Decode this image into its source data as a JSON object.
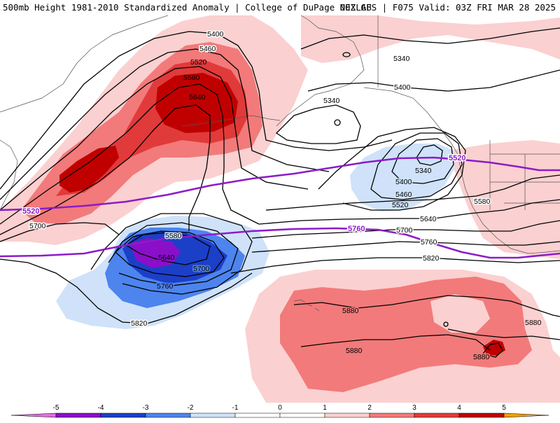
{
  "header": {
    "title_left": "500mb Height 1981-2010 Standardized Anomaly | College of DuPage NEXLAB",
    "title_right": "00Z GFS | F075 Valid: 03Z FRI MAR 28 2025"
  },
  "colors": {
    "pos1": "#fbd0d0",
    "pos2": "#f27a7a",
    "pos3": "#e13a3a",
    "pos4": "#c00000",
    "pos5": "#f0a000",
    "neg1": "#cfe2fa",
    "neg2": "#4d84ee",
    "neg3": "#1c3fc8",
    "neg4": "#8a0fc8",
    "neg5": "#e070e0",
    "contour": "#000000",
    "special_contour": "#8c1cc8",
    "coast": "#555555"
  },
  "contour_labels": {
    "c5400_top": "5400",
    "c5460_top": "5460",
    "c5520_top": "5520",
    "c5580_top": "5580",
    "c5640_top": "5640",
    "c5340_ne": "5340",
    "c5400_ne": "5400",
    "c5340_ak": "5340",
    "c5340_low": "5340",
    "c5400_low": "5400",
    "c5460_low": "5460",
    "c5520_low": "5520",
    "c5580_right": "5580",
    "c5640_right": "5640",
    "c5700_right": "5700",
    "c5760_right": "5760",
    "c5820_right": "5820",
    "c5700_left": "5700",
    "c5580_mid": "5580",
    "c5640_mid": "5640",
    "c5700_mid": "5700",
    "c5760_mid": "5760",
    "c5820_mid": "5820",
    "c5880_a": "5880",
    "c5880_b": "5880",
    "c5880_c": "5880",
    "c5880_d": "5880",
    "c5520_purple_left": "5520",
    "c5520_purple_right": "5520",
    "c5760_purple": "5760"
  },
  "colorbar": {
    "ticks": [
      "-5",
      "-4",
      "-3",
      "-2",
      "-1",
      "0",
      "1",
      "2",
      "3",
      "4",
      "5"
    ]
  }
}
